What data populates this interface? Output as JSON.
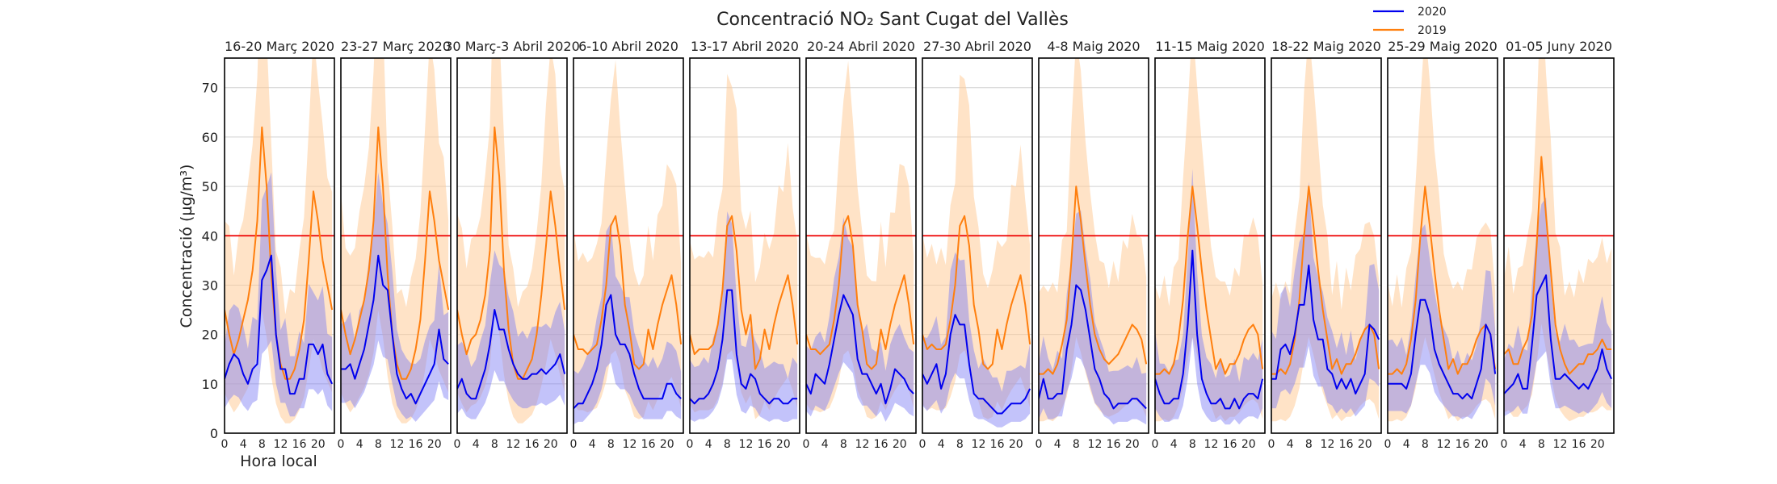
{
  "chart_data": {
    "type": "line",
    "title": "Concentració NO₂ Sant Cugat del Vallès",
    "xlabel": "Hora local",
    "ylabel": "Concentració (µg/m³)",
    "ylim": [
      0,
      76
    ],
    "xlim": [
      0,
      23.5
    ],
    "yticks": [
      "0",
      "10",
      "20",
      "30",
      "40",
      "50",
      "60",
      "70"
    ],
    "xticks": [
      "0",
      "4",
      "8",
      "12",
      "16",
      "20"
    ],
    "x": [
      0,
      1,
      2,
      3,
      4,
      5,
      6,
      7,
      8,
      9,
      10,
      11,
      12,
      13,
      14,
      15,
      16,
      17,
      18,
      19,
      20,
      21,
      22,
      23
    ],
    "grid": "horizontal",
    "legend_position": "top-right",
    "limit_line": 40,
    "series_names": [
      "2020",
      "2019"
    ],
    "colors": {
      "2020": "#0000ee",
      "2019": "#ff7f0e",
      "band2020": "#7b7bf5",
      "band2019": "#ffcc99",
      "limit": "#ee0000"
    },
    "panels": [
      {
        "title": "16-20 Març 2020",
        "s2020": [
          11,
          14,
          16,
          15,
          12,
          10,
          13,
          14,
          31,
          33,
          36,
          20,
          13,
          13,
          8,
          8,
          11,
          11,
          18,
          18,
          16,
          18,
          12,
          10
        ],
        "s2019": [
          25,
          20,
          16,
          19,
          23,
          27,
          33,
          43,
          62,
          50,
          32,
          20,
          14,
          11,
          11,
          13,
          17,
          23,
          35,
          49,
          43,
          35,
          30,
          25
        ]
      },
      {
        "title": "23-27 Març 2020",
        "s2020": [
          13,
          13,
          14,
          11,
          14,
          17,
          22,
          27,
          36,
          30,
          29,
          20,
          12,
          9,
          7,
          8,
          6,
          8,
          10,
          12,
          14,
          21,
          15,
          14
        ],
        "s2019": [
          25,
          20,
          16,
          19,
          23,
          27,
          33,
          43,
          62,
          50,
          32,
          20,
          14,
          11,
          11,
          13,
          17,
          23,
          35,
          49,
          43,
          35,
          30,
          25
        ]
      },
      {
        "title": "30 Març-3 Abril 2020",
        "s2020": [
          9,
          11,
          8,
          7,
          7,
          10,
          13,
          18,
          25,
          21,
          21,
          17,
          14,
          12,
          11,
          11,
          12,
          12,
          13,
          12,
          13,
          14,
          16,
          12
        ],
        "s2019": [
          25,
          20,
          16,
          19,
          20,
          23,
          28,
          37,
          62,
          52,
          33,
          21,
          14,
          11,
          11,
          13,
          15,
          20,
          28,
          38,
          49,
          42,
          33,
          25
        ]
      },
      {
        "title": "6-10 Abril 2020",
        "s2020": [
          5,
          6,
          6,
          8,
          10,
          13,
          18,
          26,
          28,
          20,
          18,
          18,
          16,
          12,
          9,
          7,
          7,
          7,
          7,
          7,
          10,
          10,
          8,
          7
        ],
        "s2019": [
          20,
          17,
          17,
          16,
          17,
          18,
          23,
          30,
          42,
          44,
          38,
          26,
          21,
          14,
          13,
          14,
          21,
          17,
          22,
          26,
          29,
          32,
          26,
          18
        ]
      },
      {
        "title": "13-17 Abril 2020",
        "s2020": [
          7,
          6,
          7,
          7,
          8,
          10,
          13,
          19,
          29,
          29,
          16,
          10,
          9,
          12,
          11,
          8,
          7,
          6,
          7,
          7,
          6,
          6,
          7,
          7
        ],
        "s2019": [
          20,
          16,
          17,
          17,
          17,
          18,
          22,
          29,
          42,
          44,
          37,
          25,
          20,
          24,
          13,
          15,
          21,
          17,
          22,
          26,
          29,
          32,
          26,
          18
        ]
      },
      {
        "title": "20-24 Abril 2020",
        "s2020": [
          10,
          8,
          12,
          11,
          10,
          14,
          19,
          24,
          28,
          26,
          24,
          15,
          12,
          12,
          10,
          8,
          10,
          6,
          9,
          13,
          12,
          11,
          9,
          8
        ],
        "s2019": [
          20,
          17,
          17,
          16,
          17,
          18,
          23,
          30,
          42,
          44,
          38,
          26,
          21,
          14,
          13,
          14,
          21,
          17,
          22,
          26,
          29,
          32,
          26,
          18
        ]
      },
      {
        "title": "27-30 Abril 2020",
        "s2020": [
          12,
          10,
          12,
          14,
          9,
          12,
          20,
          24,
          22,
          22,
          14,
          8,
          7,
          7,
          6,
          5,
          4,
          4,
          5,
          6,
          6,
          6,
          7,
          9
        ],
        "s2019": [
          20,
          17,
          18,
          17,
          17,
          18,
          23,
          30,
          42,
          44,
          38,
          26,
          21,
          14,
          13,
          14,
          21,
          17,
          22,
          26,
          29,
          32,
          26,
          18
        ]
      },
      {
        "title": "4-8 Maig 2020",
        "s2020": [
          7,
          11,
          7,
          7,
          8,
          8,
          17,
          22,
          30,
          29,
          25,
          19,
          13,
          11,
          8,
          7,
          5,
          6,
          6,
          6,
          7,
          7,
          6,
          5
        ],
        "s2019": [
          12,
          12,
          13,
          12,
          14,
          18,
          23,
          35,
          50,
          43,
          34,
          26,
          20,
          17,
          15,
          14,
          15,
          16,
          18,
          20,
          22,
          21,
          19,
          14
        ]
      },
      {
        "title": "11-15 Maig 2020",
        "s2020": [
          11,
          8,
          6,
          6,
          7,
          7,
          12,
          22,
          37,
          20,
          11,
          8,
          6,
          6,
          7,
          5,
          5,
          7,
          5,
          7,
          8,
          8,
          7,
          11
        ],
        "s2019": [
          12,
          12,
          13,
          12,
          14,
          19,
          27,
          40,
          50,
          42,
          33,
          25,
          19,
          13,
          15,
          12,
          14,
          14,
          16,
          19,
          21,
          22,
          20,
          13
        ]
      },
      {
        "title": "18-22 Maig 2020",
        "s2020": [
          11,
          11,
          17,
          18,
          16,
          20,
          26,
          26,
          34,
          23,
          19,
          19,
          13,
          12,
          9,
          11,
          9,
          11,
          8,
          10,
          12,
          22,
          21,
          19
        ],
        "s2019": [
          12,
          12,
          13,
          12,
          14,
          19,
          27,
          40,
          50,
          42,
          33,
          25,
          19,
          13,
          15,
          12,
          14,
          14,
          16,
          19,
          21,
          22,
          20,
          13
        ]
      },
      {
        "title": "25-29 Maig 2020",
        "s2020": [
          10,
          10,
          10,
          10,
          9,
          12,
          20,
          27,
          27,
          24,
          17,
          14,
          12,
          10,
          8,
          8,
          7,
          8,
          7,
          10,
          13,
          22,
          20,
          12
        ],
        "s2019": [
          12,
          12,
          13,
          12,
          14,
          19,
          27,
          40,
          50,
          42,
          33,
          25,
          19,
          13,
          15,
          12,
          14,
          14,
          16,
          19,
          21,
          22,
          20,
          13
        ]
      },
      {
        "title": "01-05 Juny 2020",
        "s2020": [
          8,
          9,
          10,
          12,
          9,
          9,
          18,
          28,
          30,
          32,
          19,
          11,
          11,
          12,
          11,
          10,
          9,
          10,
          9,
          11,
          13,
          17,
          13,
          11
        ],
        "s2019": [
          16,
          17,
          14,
          14,
          17,
          19,
          24,
          38,
          56,
          44,
          33,
          22,
          17,
          14,
          12,
          13,
          14,
          14,
          16,
          16,
          17,
          19,
          17,
          17
        ]
      }
    ]
  }
}
